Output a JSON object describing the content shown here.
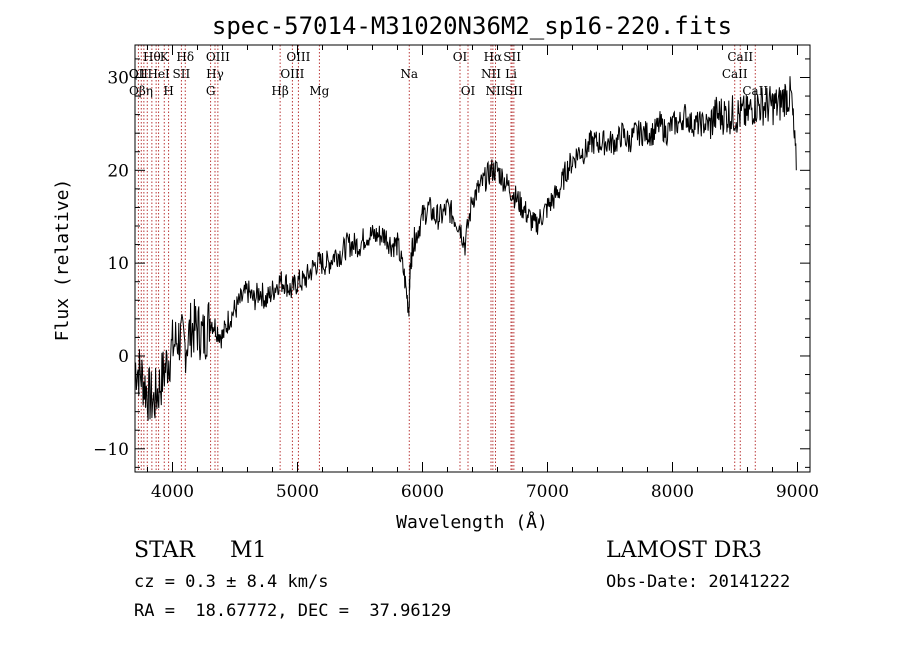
{
  "chart_data": {
    "type": "line",
    "title": "spec-57014-M31020N36M2_sp16-220.fits",
    "xlabel": "Wavelength (Å)",
    "ylabel": "Flux (relative)",
    "xlim": [
      3700,
      9100
    ],
    "ylim": [
      -12.5,
      33.5
    ],
    "xticks": [
      4000,
      5000,
      6000,
      7000,
      8000,
      9000
    ],
    "yticks": [
      -10,
      0,
      10,
      20,
      30
    ],
    "series": [
      {
        "name": "flux",
        "x": [
          3700,
          3750,
          3800,
          3850,
          3900,
          3950,
          4000,
          4050,
          4100,
          4150,
          4200,
          4250,
          4300,
          4350,
          4400,
          4450,
          4500,
          4550,
          4600,
          4650,
          4700,
          4750,
          4800,
          4850,
          4900,
          4950,
          5000,
          5050,
          5100,
          5150,
          5200,
          5250,
          5300,
          5350,
          5400,
          5450,
          5500,
          5550,
          5600,
          5650,
          5700,
          5750,
          5800,
          5850,
          5890,
          5900,
          5920,
          5950,
          6000,
          6050,
          6100,
          6150,
          6200,
          6250,
          6300,
          6340,
          6400,
          6450,
          6500,
          6550,
          6600,
          6650,
          6700,
          6750,
          6800,
          6850,
          6900,
          6950,
          7000,
          7050,
          7100,
          7150,
          7200,
          7250,
          7300,
          7350,
          7400,
          7450,
          7500,
          7550,
          7600,
          7650,
          7700,
          7750,
          7800,
          7850,
          7900,
          7950,
          8000,
          8050,
          8100,
          8150,
          8200,
          8250,
          8300,
          8350,
          8400,
          8450,
          8500,
          8550,
          8600,
          8650,
          8700,
          8750,
          8800,
          8850,
          8900,
          8950,
          8990
        ],
        "y": [
          -1,
          -2,
          -4,
          -5,
          -3,
          -1,
          1,
          2,
          1,
          3,
          3,
          2,
          4,
          3,
          2,
          4,
          5,
          6,
          7,
          6,
          7,
          6,
          7,
          8,
          8,
          7,
          8,
          8,
          9,
          10,
          10,
          10,
          11,
          11,
          12,
          12,
          12,
          13,
          13,
          13,
          13,
          12,
          12,
          9,
          5,
          9,
          12,
          13,
          15,
          16,
          15,
          15,
          16,
          15,
          14,
          12,
          17,
          18,
          19,
          20,
          20,
          19,
          18,
          17,
          16,
          15,
          14,
          15,
          16,
          17,
          18,
          20,
          21,
          22,
          22,
          23,
          23,
          23,
          23,
          23,
          24,
          23,
          24,
          24,
          24,
          24,
          25,
          24,
          25,
          25,
          26,
          25,
          25,
          25,
          25,
          26,
          26,
          26,
          26,
          26,
          26,
          27,
          27,
          27,
          27,
          27,
          28,
          28,
          20
        ]
      }
    ],
    "lines": [
      {
        "wave": 3727,
        "label": "OII",
        "row": 1
      },
      {
        "wave": 3750,
        "label": "",
        "row": 0
      },
      {
        "wave": 3771,
        "label": "",
        "row": 0
      },
      {
        "wave": 3798,
        "label": "",
        "row": 0
      },
      {
        "wave": 3835,
        "label": "Hθ",
        "row": 0
      },
      {
        "wave": 3869,
        "label": "",
        "row": 0
      },
      {
        "wave": 3889,
        "label": "HeI",
        "row": 1
      },
      {
        "wave": 3934,
        "label": "K",
        "row": 0
      },
      {
        "wave": 3969,
        "label": "H",
        "row": 2
      },
      {
        "wave": 4071,
        "label": "SII",
        "row": 1
      },
      {
        "wave": 4102,
        "label": "Hδ",
        "row": 0
      },
      {
        "wave": 4305,
        "label": "G",
        "row": 2
      },
      {
        "wave": 4340,
        "label": "Hγ",
        "row": 1
      },
      {
        "wave": 4363,
        "label": "OIII",
        "row": 0
      },
      {
        "wave": 4861,
        "label": "Hβ",
        "row": 2
      },
      {
        "wave": 4959,
        "label": "OIII",
        "row": 1
      },
      {
        "wave": 5007,
        "label": "OIII",
        "row": 0
      },
      {
        "wave": 5175,
        "label": "Mg",
        "row": 2
      },
      {
        "wave": 5894,
        "label": "Na",
        "row": 1
      },
      {
        "wave": 6300,
        "label": "OI",
        "row": 0
      },
      {
        "wave": 6364,
        "label": "OI",
        "row": 2
      },
      {
        "wave": 6548,
        "label": "NII",
        "row": 1
      },
      {
        "wave": 6563,
        "label": "Hα",
        "row": 0
      },
      {
        "wave": 6584,
        "label": "NII",
        "row": 2
      },
      {
        "wave": 6708,
        "label": "Li",
        "row": 1
      },
      {
        "wave": 6717,
        "label": "SII",
        "row": 0
      },
      {
        "wave": 6731,
        "label": "SII",
        "row": 2
      },
      {
        "wave": 8498,
        "label": "CaII",
        "row": 1
      },
      {
        "wave": 8542,
        "label": "CaII",
        "row": 0
      },
      {
        "wave": 8662,
        "label": "CaII",
        "row": 2
      }
    ]
  },
  "overlay_labels": {
    "left_row1": "Q1",
    "left_row2": "Qβη"
  },
  "info": {
    "class": "STAR",
    "subclass": "M1",
    "cz": "cz = 0.3 ± 8.4 km/s",
    "radec": "RA =  18.67772, DEC =  37.96129",
    "survey": "LAMOST DR3",
    "obsdate": "Obs-Date: 20141222"
  },
  "colors": {
    "line_marker": "#b22222",
    "spectrum": "#000000"
  }
}
